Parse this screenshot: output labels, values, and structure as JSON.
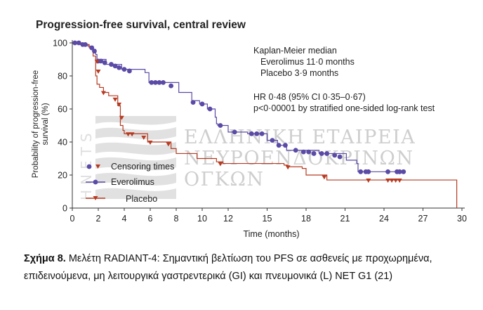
{
  "chart_data": {
    "type": "line",
    "subtype": "kaplan-meier",
    "title": "Progression-free survival, central review",
    "xlabel": "Time (months)",
    "ylabel": "Probability of progression-free survival (%)",
    "xlim": [
      0,
      30
    ],
    "ylim": [
      0,
      100
    ],
    "xticks": [
      0,
      2,
      4,
      6,
      8,
      10,
      12,
      15,
      18,
      21,
      24,
      27,
      30
    ],
    "yticks": [
      0,
      20,
      40,
      60,
      80,
      100
    ],
    "grid": false,
    "legend": {
      "position": "lower-left",
      "entries": [
        "Censoring times",
        "Everolimus",
        "Placebo"
      ]
    },
    "annotations": {
      "median_header": "Kaplan-Meier median",
      "median_everolimus": "Everolimus 11·0 months",
      "median_placebo": "Placebo 3·9 months",
      "hr": "HR 0·48 (95% CI 0·35–0·67)",
      "p": "p<0·00001 by stratified one-sided log-rank test"
    },
    "series": [
      {
        "name": "Everolimus",
        "color": "#5b4aa6",
        "steps": [
          [
            0,
            100
          ],
          [
            0.6,
            99
          ],
          [
            1.2,
            98
          ],
          [
            1.6,
            96
          ],
          [
            1.8,
            93
          ],
          [
            1.9,
            90
          ],
          [
            2.6,
            87
          ],
          [
            3.8,
            84
          ],
          [
            5.6,
            82
          ],
          [
            5.9,
            76
          ],
          [
            8.2,
            70
          ],
          [
            9.2,
            65
          ],
          [
            9.8,
            63
          ],
          [
            10.4,
            60
          ],
          [
            11,
            55
          ],
          [
            11.1,
            51
          ],
          [
            11.2,
            50
          ],
          [
            12,
            46
          ],
          [
            13.5,
            45
          ],
          [
            15,
            41
          ],
          [
            15.8,
            38
          ],
          [
            16.5,
            35
          ],
          [
            19,
            33
          ],
          [
            21.1,
            29
          ],
          [
            21.9,
            27
          ],
          [
            22,
            22
          ],
          [
            25.5,
            22
          ]
        ],
        "censor": [
          [
            0.2,
            100
          ],
          [
            0.5,
            100
          ],
          [
            0.8,
            99
          ],
          [
            1.0,
            99
          ],
          [
            1.5,
            97
          ],
          [
            1.7,
            95
          ],
          [
            2.0,
            89
          ],
          [
            2.2,
            89
          ],
          [
            2.5,
            88
          ],
          [
            3.0,
            87
          ],
          [
            3.3,
            86
          ],
          [
            3.6,
            85
          ],
          [
            4.0,
            84
          ],
          [
            4.4,
            83
          ],
          [
            6.1,
            76
          ],
          [
            6.4,
            76
          ],
          [
            6.7,
            76
          ],
          [
            7.0,
            76
          ],
          [
            7.6,
            74
          ],
          [
            9.3,
            64
          ],
          [
            10.0,
            63
          ],
          [
            10.6,
            60
          ],
          [
            11.4,
            50
          ],
          [
            12.5,
            46
          ],
          [
            13.8,
            45
          ],
          [
            14.2,
            45
          ],
          [
            14.6,
            45
          ],
          [
            15.4,
            41
          ],
          [
            15.9,
            38
          ],
          [
            16.4,
            38
          ],
          [
            17.2,
            35
          ],
          [
            17.8,
            34
          ],
          [
            18.2,
            34
          ],
          [
            18.6,
            33
          ],
          [
            19.2,
            33
          ],
          [
            19.6,
            33
          ],
          [
            20.2,
            32
          ],
          [
            20.6,
            31
          ],
          [
            22.2,
            22
          ],
          [
            22.6,
            22
          ],
          [
            22.8,
            22
          ],
          [
            24.3,
            22
          ],
          [
            25.0,
            22
          ],
          [
            25.2,
            22
          ],
          [
            25.5,
            22
          ]
        ]
      },
      {
        "name": "Placebo",
        "color": "#b73b22",
        "steps": [
          [
            0,
            100
          ],
          [
            0.8,
            99
          ],
          [
            1.3,
            97
          ],
          [
            1.6,
            92
          ],
          [
            1.8,
            80
          ],
          [
            1.9,
            75
          ],
          [
            2.1,
            73
          ],
          [
            2.4,
            70
          ],
          [
            2.8,
            68
          ],
          [
            3.5,
            62
          ],
          [
            3.7,
            50
          ],
          [
            3.9,
            47
          ],
          [
            4.0,
            45
          ],
          [
            5.8,
            40
          ],
          [
            7.6,
            36
          ],
          [
            8.0,
            33
          ],
          [
            9.6,
            30
          ],
          [
            11.1,
            28
          ],
          [
            11.6,
            27
          ],
          [
            16.3,
            26
          ],
          [
            16.6,
            25
          ],
          [
            17.7,
            24
          ],
          [
            18.0,
            20
          ],
          [
            19.6,
            17
          ],
          [
            29.6,
            17
          ],
          [
            29.6,
            0
          ]
        ],
        "censor": [
          [
            1.9,
            89
          ],
          [
            2.0,
            83
          ],
          [
            2.4,
            70
          ],
          [
            3.3,
            66
          ],
          [
            3.6,
            63
          ],
          [
            3.8,
            55
          ],
          [
            4.3,
            45
          ],
          [
            4.6,
            45
          ],
          [
            5.5,
            43
          ],
          [
            6.0,
            40
          ],
          [
            7.4,
            39
          ],
          [
            11.4,
            27
          ],
          [
            16.6,
            25
          ],
          [
            19.4,
            19
          ],
          [
            22.8,
            17
          ],
          [
            24.3,
            17
          ],
          [
            24.6,
            17
          ],
          [
            24.9,
            17
          ],
          [
            25.2,
            17
          ]
        ]
      }
    ]
  },
  "watermark": {
    "logo_letters": "HNETS",
    "line1": "ΕΛΛΗΝΙΚΗ ΕΤΑΙΡΕΙΑ",
    "line2": "ΝΕΥΡΟΕΝΔΟΚΡΙΝΩΝ",
    "line3": "ΟΓΚΩΝ"
  },
  "caption": {
    "label": "Σχήμα 8.",
    "text": " Μελέτη RADIANT-4: Σημαντική βελτίωση του PFS σε ασθενείς με προχωρημένα, επιδεινούμενα, μη λειτουργικά  γαστρεντερικά (GI) και πνευμονικά (L) NET G1 (21)"
  }
}
